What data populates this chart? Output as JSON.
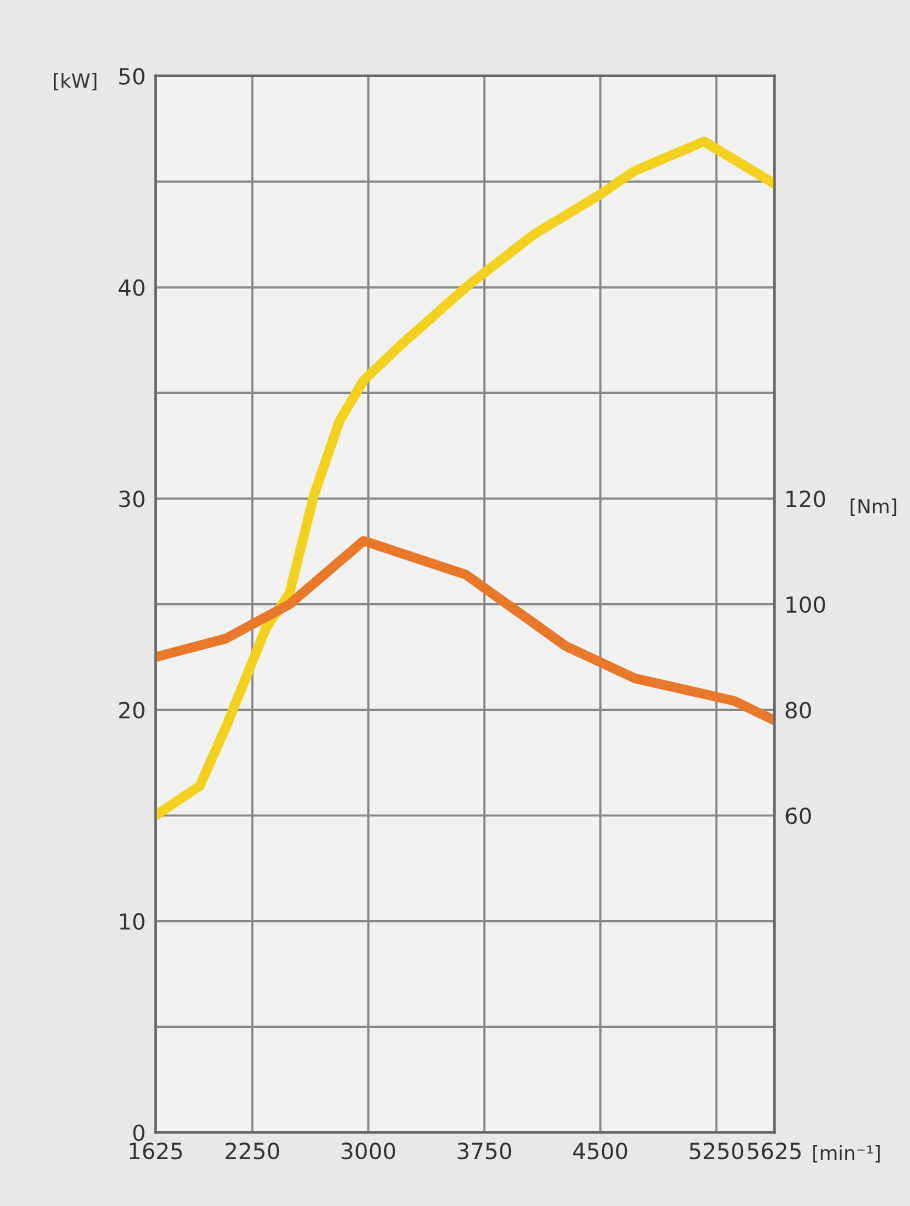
{
  "chart_data": {
    "type": "line",
    "xlabel": "[min⁻¹]",
    "ylabel": "[kW]",
    "y2label": "[Nm]",
    "xlim": [
      1625,
      5625
    ],
    "xticks": [
      1625,
      2250,
      3000,
      3750,
      4500,
      5250,
      5625
    ],
    "ylim": [
      0,
      50
    ],
    "yticks": [
      0,
      {
        "value": 5,
        "label": null
      },
      10,
      {
        "value": 15,
        "label": null
      },
      20,
      {
        "value": 25,
        "label": null
      },
      30,
      {
        "value": 35,
        "label": null
      },
      40,
      {
        "value": 45,
        "label": null
      },
      50
    ],
    "y2lim": [
      0,
      200
    ],
    "y2ticks": [
      60,
      80,
      100,
      120
    ],
    "grid": true,
    "marker": "none",
    "line_style": "solid",
    "series": [
      {
        "color": "#f2d21e",
        "x": [
          1625,
          1910,
          2080,
          2340,
          2490,
          2650,
          2815,
          2970,
          3200,
          3630,
          4070,
          4500,
          4720,
          5170,
          5625
        ],
        "values": [
          15,
          16.4,
          19.2,
          23.9,
          25.5,
          30.2,
          33.7,
          35.6,
          37.2,
          40.0,
          42.5,
          44.4,
          45.5,
          46.9,
          44.9
        ]
      },
      {
        "color": "#e8782a",
        "axis": "y2",
        "x": [
          1625,
          2080,
          2490,
          2970,
          3630,
          4280,
          4720,
          5170,
          5365,
          5625
        ],
        "values": [
          90,
          93.5,
          100,
          112,
          105.6,
          92,
          86,
          83,
          81.7,
          78
        ]
      }
    ]
  }
}
